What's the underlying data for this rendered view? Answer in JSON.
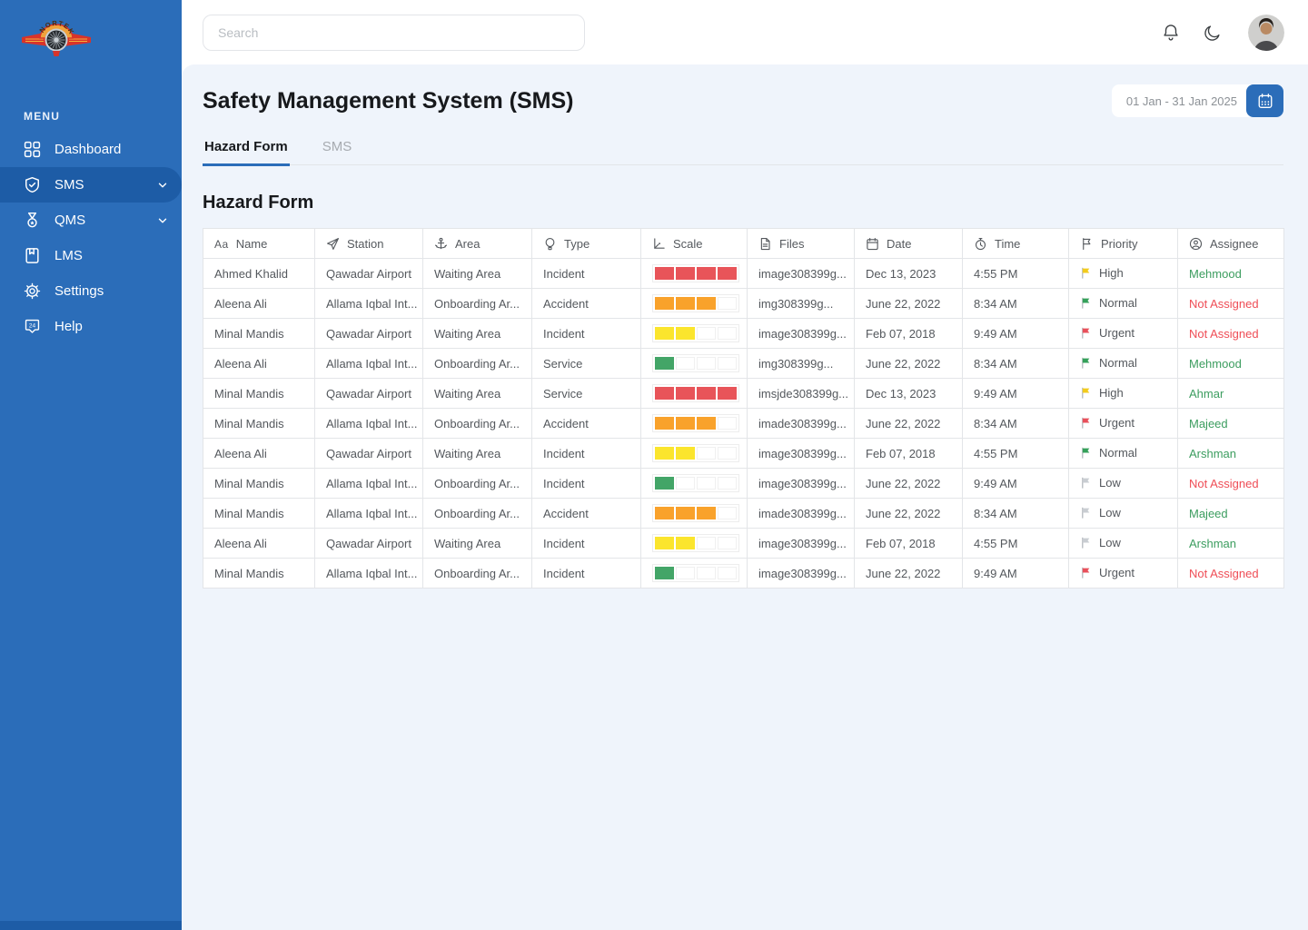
{
  "app": {
    "logo_name": "NORTEK",
    "colors": {
      "sidebar": "#2B6DB9",
      "sidebar_active": "#1D5CA6",
      "accent": "#2B6DB9",
      "assigned_green": "#3C9D5F",
      "not_assigned_red": "#EF4D56"
    }
  },
  "sidebar": {
    "menu_label": "MENU",
    "items": [
      {
        "label": "Dashboard",
        "icon": "grid-icon",
        "active": false,
        "chevron": false
      },
      {
        "label": "SMS",
        "icon": "shield-check-icon",
        "active": true,
        "chevron": true
      },
      {
        "label": "QMS",
        "icon": "medal-icon",
        "active": false,
        "chevron": true
      },
      {
        "label": "LMS",
        "icon": "book-icon",
        "active": false,
        "chevron": false
      },
      {
        "label": "Settings",
        "icon": "gear-icon",
        "active": false,
        "chevron": false
      },
      {
        "label": "Help",
        "icon": "badge-24-icon",
        "active": false,
        "chevron": false
      }
    ]
  },
  "topbar": {
    "search_placeholder": "Search",
    "icons": [
      "bell-icon",
      "moon-icon"
    ],
    "avatar": "user-avatar"
  },
  "header": {
    "title": "Safety Management System (SMS)",
    "date_range": "01 Jan - 31 Jan 2025",
    "date_button_icon": "calendar-icon"
  },
  "tabs": [
    {
      "label": "Hazard Form",
      "active": true
    },
    {
      "label": "SMS",
      "active": false
    }
  ],
  "section_title": "Hazard Form",
  "table": {
    "columns": [
      {
        "label": "Name",
        "icon": "letters-icon"
      },
      {
        "label": "Station",
        "icon": "plane-icon"
      },
      {
        "label": "Area",
        "icon": "anchor-icon"
      },
      {
        "label": "Type",
        "icon": "balloon-icon"
      },
      {
        "label": "Scale",
        "icon": "axis-icon"
      },
      {
        "label": "Files",
        "icon": "file-icon"
      },
      {
        "label": "Date",
        "icon": "calendar-icon"
      },
      {
        "label": "Time",
        "icon": "clock-icon"
      },
      {
        "label": "Priority",
        "icon": "flag-icon"
      },
      {
        "label": "Assignee",
        "icon": "user-circle-icon"
      }
    ],
    "scale_max": 4,
    "scale_colors": {
      "1": "#43A567",
      "2": "#FBE52D",
      "3": "#F9A22B",
      "4": "#E85459"
    },
    "priority_colors": {
      "High": "#F2CB1D",
      "Normal": "#35A05A",
      "Urgent": "#E8505B",
      "Low": "#C9CDD2"
    },
    "rows": [
      {
        "name": "Ahmed Khalid",
        "station": "Qawadar Airport",
        "area": "Waiting Area",
        "type": "Incident",
        "scale": 4,
        "files": "image308399g...",
        "date": "Dec 13, 2023",
        "time": "4:55 PM",
        "priority": "High",
        "assignee": "Mehmood",
        "assignee_status": "assigned"
      },
      {
        "name": "Aleena Ali",
        "station": "Allama Iqbal Int...",
        "area": "Onboarding Ar...",
        "type": "Accident",
        "scale": 3,
        "files": "img308399g...",
        "date": "June 22, 2022",
        "time": "8:34 AM",
        "priority": "Normal",
        "assignee": "Not Assigned",
        "assignee_status": "not_assigned"
      },
      {
        "name": "Minal Mandis",
        "station": "Qawadar Airport",
        "area": "Waiting Area",
        "type": "Incident",
        "scale": 2,
        "files": "image308399g...",
        "date": "Feb 07, 2018",
        "time": "9:49 AM",
        "priority": "Urgent",
        "assignee": "Not Assigned",
        "assignee_status": "not_assigned"
      },
      {
        "name": "Aleena Ali",
        "station": "Allama Iqbal Int...",
        "area": "Onboarding Ar...",
        "type": "Service",
        "scale": 1,
        "files": "img308399g...",
        "date": "June 22, 2022",
        "time": "8:34 AM",
        "priority": "Normal",
        "assignee": "Mehmood",
        "assignee_status": "assigned"
      },
      {
        "name": "Minal Mandis",
        "station": "Qawadar Airport",
        "area": "Waiting Area",
        "type": "Service",
        "scale": 4,
        "files": "imsjde308399g...",
        "date": "Dec 13, 2023",
        "time": "9:49 AM",
        "priority": "High",
        "assignee": "Ahmar",
        "assignee_status": "assigned"
      },
      {
        "name": "Minal Mandis",
        "station": "Allama Iqbal Int...",
        "area": "Onboarding Ar...",
        "type": "Accident",
        "scale": 3,
        "files": "imade308399g...",
        "date": "June 22, 2022",
        "time": "8:34 AM",
        "priority": "Urgent",
        "assignee": "Majeed",
        "assignee_status": "assigned"
      },
      {
        "name": "Aleena Ali",
        "station": "Qawadar Airport",
        "area": "Waiting Area",
        "type": "Incident",
        "scale": 2,
        "files": "image308399g...",
        "date": "Feb 07, 2018",
        "time": "4:55 PM",
        "priority": "Normal",
        "assignee": "Arshman",
        "assignee_status": "assigned"
      },
      {
        "name": "Minal Mandis",
        "station": "Allama Iqbal Int...",
        "area": "Onboarding Ar...",
        "type": "Incident",
        "scale": 1,
        "files": "image308399g...",
        "date": "June 22, 2022",
        "time": "9:49 AM",
        "priority": "Low",
        "assignee": "Not Assigned",
        "assignee_status": "not_assigned"
      },
      {
        "name": "Minal Mandis",
        "station": "Allama Iqbal Int...",
        "area": "Onboarding Ar...",
        "type": "Accident",
        "scale": 3,
        "files": "imade308399g...",
        "date": "June 22, 2022",
        "time": "8:34 AM",
        "priority": "Low",
        "assignee": "Majeed",
        "assignee_status": "assigned"
      },
      {
        "name": "Aleena Ali",
        "station": "Qawadar Airport",
        "area": "Waiting Area",
        "type": "Incident",
        "scale": 2,
        "files": "image308399g...",
        "date": "Feb 07, 2018",
        "time": "4:55 PM",
        "priority": "Low",
        "assignee": "Arshman",
        "assignee_status": "assigned"
      },
      {
        "name": "Minal Mandis",
        "station": "Allama Iqbal Int...",
        "area": "Onboarding Ar...",
        "type": "Incident",
        "scale": 1,
        "files": "image308399g...",
        "date": "June 22, 2022",
        "time": "9:49 AM",
        "priority": "Urgent",
        "assignee": "Not Assigned",
        "assignee_status": "not_assigned"
      }
    ]
  }
}
